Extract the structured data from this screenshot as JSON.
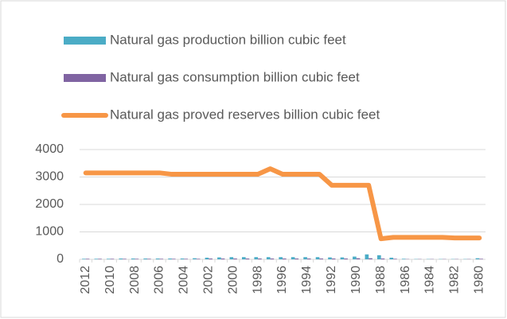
{
  "chart_data": {
    "type": "bar",
    "categories": [
      "2012",
      null,
      "2010",
      null,
      "2008",
      null,
      "2006",
      null,
      "2004",
      null,
      "2002",
      null,
      "2000",
      null,
      "1998",
      null,
      "1996",
      null,
      "1994",
      null,
      "1992",
      null,
      "1990",
      null,
      "1988",
      null,
      "1986",
      null,
      "1984",
      null,
      "1982",
      null,
      "1980"
    ],
    "series": [
      {
        "name": "Natural gas production billion cubic feet",
        "color": "#4bacc6",
        "kind": "bar",
        "values": [
          20,
          20,
          20,
          30,
          30,
          30,
          30,
          30,
          30,
          40,
          60,
          70,
          80,
          80,
          80,
          80,
          80,
          80,
          80,
          80,
          70,
          70,
          100,
          180,
          150,
          60,
          20,
          10,
          10,
          10,
          10,
          10,
          40
        ]
      },
      {
        "name": "Natural gas consumption billion cubic feet",
        "color": "#8064a2",
        "kind": "bar",
        "values": [
          20,
          20,
          20,
          20,
          20,
          20,
          20,
          20,
          20,
          20,
          30,
          30,
          30,
          30,
          30,
          30,
          30,
          30,
          30,
          30,
          30,
          30,
          40,
          40,
          30,
          20,
          10,
          10,
          10,
          10,
          10,
          10,
          20
        ]
      },
      {
        "name": "Natural gas proved reserves billion cubic feet",
        "color": "#f79646",
        "kind": "line",
        "values": [
          3150,
          3150,
          3150,
          3150,
          3150,
          3150,
          3150,
          3100,
          3100,
          3100,
          3100,
          3100,
          3100,
          3100,
          3100,
          3300,
          3100,
          3100,
          3100,
          3100,
          2700,
          2700,
          2700,
          2700,
          750,
          800,
          800,
          800,
          800,
          800,
          780,
          780,
          780
        ]
      }
    ],
    "ylim": [
      0,
      4000
    ],
    "yticks": [
      0,
      1000,
      2000,
      3000,
      4000
    ],
    "grid": true,
    "legend": "top"
  }
}
